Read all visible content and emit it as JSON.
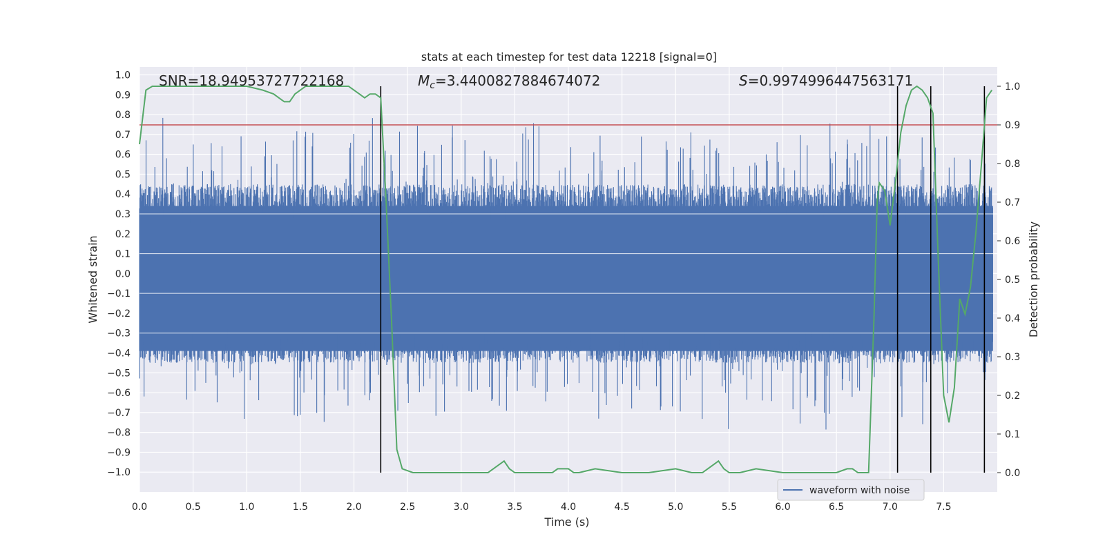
{
  "chart_data": {
    "type": "line",
    "title": "stats at each timestep for test data 12218 [signal=0]",
    "xlabel": "Time (s)",
    "ylabel_left": "Whitened strain",
    "ylabel_right": "Detection probability",
    "xlim": [
      0.0,
      8.0
    ],
    "ylim_left": [
      -1.1,
      1.04
    ],
    "ylim_right": [
      -0.05,
      1.05
    ],
    "x_ticks": [
      "0.0",
      "0.5",
      "1.0",
      "1.5",
      "2.0",
      "2.5",
      "3.0",
      "3.5",
      "4.0",
      "4.5",
      "5.0",
      "5.5",
      "6.0",
      "6.5",
      "7.0",
      "7.5"
    ],
    "y_ticks_left": [
      "1.0",
      "0.9",
      "0.8",
      "0.7",
      "0.6",
      "0.5",
      "0.4",
      "0.3",
      "0.2",
      "0.1",
      "0.0",
      "−0.1",
      "−0.2",
      "−0.3",
      "−0.4",
      "−0.5",
      "−0.6",
      "−0.7",
      "−0.8",
      "−0.9",
      "−1.0"
    ],
    "y_ticks_right": [
      "1.0",
      "0.9",
      "0.8",
      "0.7",
      "0.6",
      "0.5",
      "0.4",
      "0.3",
      "0.2",
      "0.1",
      "0.0"
    ],
    "annotations": {
      "snr": "SNR=18.94953727722168",
      "mc": "=3.4400827884674072",
      "mc_symbol": "M",
      "mc_sub": "c",
      "s": "=0.9974996447563171",
      "s_symbol": "S"
    },
    "threshold": 0.9,
    "vertical_lines": [
      2.25,
      7.07,
      7.38,
      7.88
    ],
    "legend": [
      "waveform with noise"
    ],
    "legend_position": "lower-right",
    "colors": {
      "background": "#eaeaf2",
      "waveform": "#4c72b0",
      "probability": "#55a868",
      "threshold": "#c44e52",
      "vline": "#000000"
    },
    "series": [
      {
        "name": "detection probability",
        "x": [
          0.0,
          0.06,
          0.12,
          0.25,
          0.5,
          0.75,
          1.0,
          1.15,
          1.25,
          1.3,
          1.35,
          1.4,
          1.45,
          1.5,
          1.55,
          1.75,
          1.95,
          2.0,
          2.05,
          2.1,
          2.15,
          2.2,
          2.25,
          2.3,
          2.35,
          2.4,
          2.45,
          2.55,
          2.75,
          3.0,
          3.25,
          3.3,
          3.35,
          3.4,
          3.45,
          3.5,
          3.75,
          3.85,
          3.9,
          3.95,
          4.0,
          4.05,
          4.1,
          4.25,
          4.5,
          4.75,
          5.0,
          5.15,
          5.25,
          5.3,
          5.35,
          5.4,
          5.45,
          5.5,
          5.6,
          5.75,
          6.0,
          6.25,
          6.5,
          6.6,
          6.65,
          6.7,
          6.75,
          6.8,
          6.85,
          6.88,
          6.9,
          6.95,
          7.0,
          7.05,
          7.1,
          7.15,
          7.2,
          7.25,
          7.3,
          7.35,
          7.4,
          7.45,
          7.5,
          7.55,
          7.6,
          7.65,
          7.7,
          7.75,
          7.8,
          7.85,
          7.9,
          7.95
        ],
        "values": [
          0.85,
          0.99,
          1.0,
          1.0,
          1.0,
          1.0,
          1.0,
          0.99,
          0.98,
          0.97,
          0.96,
          0.96,
          0.98,
          0.99,
          1.0,
          1.0,
          1.0,
          0.99,
          0.98,
          0.97,
          0.98,
          0.98,
          0.97,
          0.7,
          0.4,
          0.06,
          0.01,
          0.0,
          0.0,
          0.0,
          0.0,
          0.01,
          0.02,
          0.03,
          0.01,
          0.0,
          0.0,
          0.0,
          0.01,
          0.01,
          0.01,
          0.0,
          0.0,
          0.01,
          0.0,
          0.0,
          0.01,
          0.0,
          0.0,
          0.01,
          0.02,
          0.03,
          0.01,
          0.0,
          0.0,
          0.01,
          0.0,
          0.0,
          0.0,
          0.01,
          0.01,
          0.0,
          0.0,
          0.0,
          0.4,
          0.7,
          0.75,
          0.73,
          0.64,
          0.75,
          0.88,
          0.95,
          0.99,
          1.0,
          0.99,
          0.97,
          0.93,
          0.55,
          0.2,
          0.13,
          0.22,
          0.45,
          0.41,
          0.48,
          0.62,
          0.79,
          0.97,
          0.99
        ]
      },
      {
        "name": "waveform with noise",
        "n_points": 3000,
        "amplitude": 0.45,
        "spike_max": 0.95
      }
    ]
  }
}
